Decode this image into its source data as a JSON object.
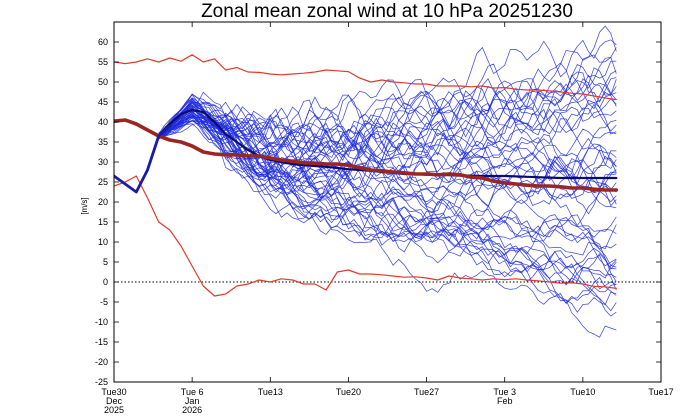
{
  "chart_data": {
    "type": "line",
    "title": "Zonal mean zonal wind at 10 hPa 20251230",
    "ylabel": "[m/s]",
    "xlabel": "",
    "ylim": [
      -25,
      65
    ],
    "yticks": [
      -25,
      -20,
      -15,
      -10,
      -5,
      0,
      5,
      10,
      15,
      20,
      25,
      30,
      35,
      40,
      45,
      50,
      55,
      60
    ],
    "ytick_labels": [
      "-25",
      "-20",
      "-15",
      "-10",
      "-5",
      "0",
      "5",
      "10",
      "15",
      "20",
      "25",
      "30",
      "35",
      "40",
      "45",
      "50",
      "55",
      "60"
    ],
    "x_unit": "days since 2025-12-30",
    "xlim": [
      0,
      49
    ],
    "xticks": [
      {
        "day": 0,
        "line1": "Tue30",
        "line2": "Dec",
        "line3": "2025"
      },
      {
        "day": 7,
        "line1": "Tue 6",
        "line2": "Jan",
        "line3": "2026"
      },
      {
        "day": 14,
        "line1": "Tue13",
        "line2": "",
        "line3": ""
      },
      {
        "day": 21,
        "line1": "Tue20",
        "line2": "",
        "line3": ""
      },
      {
        "day": 28,
        "line1": "Tue27",
        "line2": "",
        "line3": ""
      },
      {
        "day": 35,
        "line1": "Tue 3",
        "line2": "Feb",
        "line3": ""
      },
      {
        "day": 42,
        "line1": "Tue10",
        "line2": "",
        "line3": ""
      },
      {
        "day": 49,
        "line1": "Tue17",
        "line2": "",
        "line3": ""
      }
    ],
    "reference_line": {
      "y": 0,
      "style": "dotted",
      "color": "#000000"
    },
    "series": [
      {
        "name": "climatology max",
        "color": "#e03a2c",
        "width": 1.2,
        "x": [
          0,
          1,
          2,
          3,
          4,
          5,
          6,
          7,
          8,
          9,
          10,
          11,
          12,
          13,
          14,
          15,
          16,
          17,
          18,
          19,
          20,
          21,
          22,
          23,
          24,
          25,
          26,
          27,
          28,
          29,
          30,
          31,
          32,
          33,
          34,
          35,
          36,
          37,
          38,
          39,
          40,
          41,
          42,
          43,
          44,
          45
        ],
        "y": [
          55,
          54.6,
          55,
          55.8,
          55,
          56,
          55.2,
          56.8,
          55,
          55.8,
          53,
          53.6,
          52.5,
          52.4,
          52,
          51.8,
          52,
          52.2,
          52.5,
          53,
          52.8,
          52.6,
          51,
          50,
          50.5,
          50,
          49.8,
          49.5,
          49.5,
          49,
          49,
          49,
          48.8,
          49,
          48.5,
          48.6,
          48.2,
          48,
          48,
          47.8,
          47.5,
          47.2,
          47,
          46.5,
          46,
          45.6
        ]
      },
      {
        "name": "climatology min",
        "color": "#e03a2c",
        "width": 1.2,
        "x": [
          0,
          1,
          2,
          3,
          4,
          5,
          6,
          7,
          8,
          9,
          10,
          11,
          12,
          13,
          14,
          15,
          16,
          17,
          18,
          19,
          20,
          21,
          22,
          23,
          24,
          25,
          26,
          27,
          28,
          29,
          30,
          31,
          32,
          33,
          34,
          35,
          36,
          37,
          38,
          39,
          40,
          41,
          42,
          43,
          44,
          45
        ],
        "y": [
          24,
          25,
          26.5,
          21,
          15,
          13,
          9,
          4,
          -1,
          -3.5,
          -3,
          -1,
          -0.5,
          0.5,
          0,
          0.8,
          0.5,
          -0.5,
          -0.5,
          -2,
          2.5,
          3,
          2,
          2,
          1.8,
          1.5,
          1.2,
          1.3,
          1,
          0.5,
          1.5,
          1,
          0.8,
          0.5,
          0.8,
          0.6,
          0.8,
          0.5,
          0.3,
          0,
          -0.3,
          -0.2,
          -0.5,
          -1.1,
          -1.2,
          -1.6
        ]
      },
      {
        "name": "climatology mean",
        "color": "#9a2623",
        "width": 3.6,
        "x": [
          0,
          1,
          2,
          3,
          4,
          5,
          6,
          7,
          8,
          9,
          10,
          11,
          12,
          13,
          14,
          15,
          16,
          17,
          18,
          19,
          20,
          21,
          22,
          23,
          24,
          25,
          26,
          27,
          28,
          29,
          30,
          31,
          32,
          33,
          34,
          35,
          36,
          37,
          38,
          39,
          40,
          41,
          42,
          43,
          44,
          45
        ],
        "y": [
          40.2,
          40.5,
          39.5,
          38,
          36.5,
          35.5,
          35,
          34,
          32.5,
          32,
          31.8,
          31.8,
          31.5,
          31.5,
          31,
          30.5,
          30.2,
          29.8,
          29.7,
          29.5,
          29.5,
          29.2,
          28.6,
          28,
          27.8,
          27.5,
          27.3,
          27,
          27,
          26.8,
          27,
          26.8,
          26.2,
          26,
          25.2,
          24.8,
          24.5,
          24.2,
          24,
          24,
          23.8,
          23.5,
          23.5,
          23.2,
          23,
          23
        ]
      },
      {
        "name": "analysis",
        "color": "#1a1aa8",
        "width": 2.8,
        "x": [
          0,
          1,
          2,
          3,
          4,
          5
        ],
        "y": [
          26.5,
          24.5,
          22.5,
          28,
          36.5,
          39
        ]
      },
      {
        "name": "ensemble mean",
        "color": "#0b0b6e",
        "width": 2.2,
        "x": [
          4,
          5,
          6,
          7,
          8,
          9,
          10,
          11,
          12,
          13,
          14,
          15,
          16,
          17,
          18,
          19,
          20,
          21,
          22,
          23,
          24,
          25,
          26,
          27,
          28,
          29,
          30,
          31,
          32,
          33,
          34,
          35,
          36,
          37,
          38,
          39,
          40,
          41,
          42,
          43,
          44,
          45
        ],
        "y": [
          36.5,
          39.5,
          42,
          43,
          42.5,
          40,
          37,
          35,
          33,
          31.5,
          30.5,
          30,
          29.5,
          29.2,
          29,
          28.8,
          28.5,
          28.2,
          28,
          27.8,
          27.5,
          27.3,
          27,
          27,
          26.8,
          26.8,
          26.7,
          26.6,
          26.6,
          26.5,
          26.5,
          26.5,
          26.4,
          26.3,
          26.2,
          26.1,
          26,
          26,
          26,
          26,
          26,
          26
        ]
      }
    ],
    "ensemble": {
      "name": "ensemble members",
      "color": "#1f2bdc",
      "count": 52,
      "start_day": 4,
      "end_day": 45,
      "peak_range": [
        40,
        47
      ],
      "spread_day45": [
        -9,
        60
      ],
      "style": "thin"
    }
  }
}
